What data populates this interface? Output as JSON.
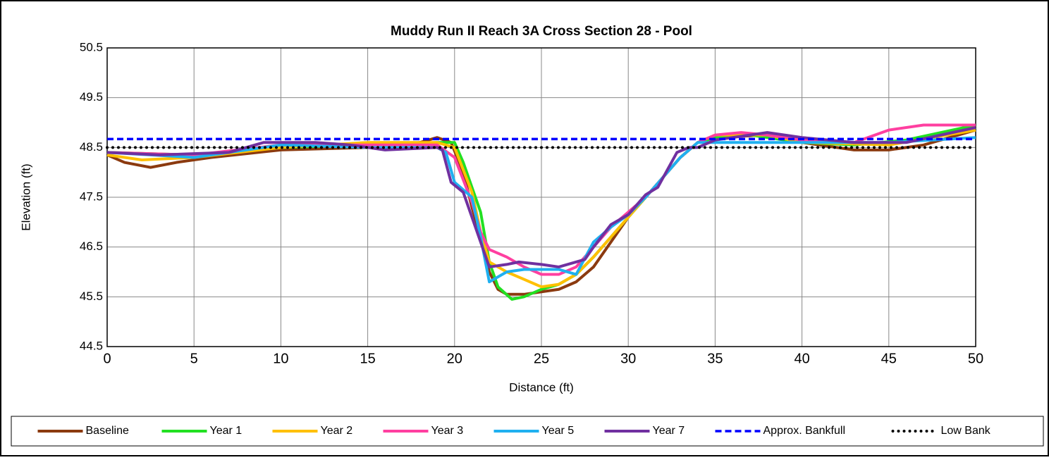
{
  "chart_data": {
    "type": "line",
    "title": "Muddy Run II Reach 3A Cross Section 28 - Pool",
    "xlabel": "Distance (ft)",
    "ylabel": "Elevation (ft)",
    "xlim": [
      0,
      50
    ],
    "xticks": [
      0,
      5,
      10,
      15,
      20,
      25,
      30,
      35,
      40,
      45,
      50
    ],
    "ylim": [
      44.5,
      50.5
    ],
    "yticks": [
      44.5,
      45.5,
      46.5,
      47.5,
      48.5,
      49.5,
      50.5
    ],
    "grid": true,
    "legend": "bottom",
    "series": [
      {
        "name": "Baseline",
        "color": "#8b3a0f",
        "style": "solid",
        "x": [
          0,
          1,
          2.5,
          4,
          6,
          10,
          15,
          18,
          19,
          19.8,
          20.5,
          21,
          21.5,
          22,
          22.5,
          23,
          24,
          25,
          26,
          27,
          28,
          29,
          30,
          31,
          32,
          33,
          34,
          35,
          38,
          40,
          43,
          45,
          47,
          50
        ],
        "values": [
          48.35,
          48.2,
          48.1,
          48.2,
          48.3,
          48.45,
          48.5,
          48.6,
          48.7,
          48.6,
          48.0,
          47.3,
          46.7,
          46.0,
          45.65,
          45.55,
          45.55,
          45.6,
          45.65,
          45.8,
          46.1,
          46.6,
          47.1,
          47.5,
          47.9,
          48.3,
          48.6,
          48.7,
          48.75,
          48.6,
          48.45,
          48.45,
          48.55,
          48.85
        ]
      },
      {
        "name": "Year 1",
        "color": "#22e022",
        "style": "solid",
        "x": [
          0,
          5,
          10,
          15,
          19,
          20,
          20.5,
          21.5,
          22,
          22.5,
          23.3,
          24,
          25,
          26,
          27,
          28,
          29,
          30,
          31,
          32,
          33,
          34,
          35,
          37,
          40,
          43,
          46,
          50
        ],
        "values": [
          48.4,
          48.35,
          48.5,
          48.55,
          48.6,
          48.6,
          48.2,
          47.2,
          46.2,
          45.7,
          45.45,
          45.5,
          45.65,
          45.75,
          45.95,
          46.3,
          46.7,
          47.1,
          47.5,
          47.9,
          48.3,
          48.6,
          48.7,
          48.75,
          48.6,
          48.55,
          48.65,
          48.95
        ]
      },
      {
        "name": "Year 2",
        "color": "#ffc000",
        "style": "solid",
        "x": [
          0,
          2,
          5,
          10,
          15,
          19,
          20,
          21,
          21.5,
          22,
          23,
          24,
          25,
          26,
          27,
          28,
          29,
          30,
          31,
          32,
          33,
          34,
          35,
          38,
          40,
          45,
          50
        ],
        "values": [
          48.35,
          48.25,
          48.3,
          48.5,
          48.6,
          48.6,
          48.5,
          47.6,
          46.8,
          46.2,
          46.0,
          45.85,
          45.7,
          45.75,
          45.95,
          46.3,
          46.7,
          47.1,
          47.5,
          47.9,
          48.3,
          48.6,
          48.75,
          48.75,
          48.6,
          48.55,
          48.85
        ]
      },
      {
        "name": "Year 3",
        "color": "#ff3fa0",
        "style": "solid",
        "x": [
          0,
          5,
          10,
          15,
          19,
          20,
          21,
          21.5,
          22,
          23,
          24,
          25,
          26,
          27,
          28,
          29,
          30,
          31,
          32,
          33,
          34,
          35,
          36.5,
          38,
          40,
          43,
          45,
          47,
          50
        ],
        "values": [
          48.4,
          48.35,
          48.55,
          48.55,
          48.55,
          48.3,
          47.4,
          46.8,
          46.45,
          46.3,
          46.1,
          45.95,
          45.95,
          46.1,
          46.5,
          46.9,
          47.2,
          47.5,
          47.9,
          48.3,
          48.6,
          48.75,
          48.8,
          48.75,
          48.65,
          48.6,
          48.85,
          48.95,
          48.95
        ]
      },
      {
        "name": "Year 5",
        "color": "#1fb0f0",
        "style": "solid",
        "x": [
          0,
          5,
          8,
          10,
          15,
          19,
          19.5,
          20,
          21,
          21.5,
          22,
          23,
          24,
          25,
          26,
          27,
          28,
          29,
          30,
          31,
          32,
          33,
          34,
          35,
          40,
          45,
          50
        ],
        "values": [
          48.4,
          48.3,
          48.45,
          48.55,
          48.5,
          48.5,
          48.4,
          47.8,
          47.5,
          46.7,
          45.8,
          46.0,
          46.05,
          46.05,
          46.05,
          45.95,
          46.6,
          46.9,
          47.15,
          47.5,
          47.9,
          48.3,
          48.6,
          48.6,
          48.6,
          48.6,
          48.7
        ]
      },
      {
        "name": "Year 7",
        "color": "#7030a0",
        "style": "solid",
        "x": [
          0,
          3,
          7,
          9,
          12,
          14,
          16,
          19,
          19.3,
          19.8,
          20.5,
          21,
          21.5,
          22,
          23,
          23.7,
          25,
          26,
          27.5,
          28,
          29,
          30,
          31,
          31.7,
          32.8,
          33.5,
          34,
          35,
          38,
          40,
          43,
          46,
          50
        ],
        "values": [
          48.4,
          48.35,
          48.4,
          48.6,
          48.6,
          48.55,
          48.45,
          48.5,
          48.45,
          47.8,
          47.6,
          47.1,
          46.6,
          46.1,
          46.15,
          46.2,
          46.15,
          46.1,
          46.25,
          46.5,
          46.95,
          47.15,
          47.55,
          47.7,
          48.4,
          48.5,
          48.5,
          48.65,
          48.8,
          48.7,
          48.6,
          48.6,
          48.9
        ]
      },
      {
        "name": "Approx. Bankfull",
        "color": "#0000ff",
        "style": "dashed",
        "x": [
          0,
          50
        ],
        "values": [
          48.67,
          48.67
        ]
      },
      {
        "name": "Low Bank",
        "color": "#000000",
        "style": "dotted",
        "x": [
          0,
          50
        ],
        "values": [
          48.5,
          48.5
        ]
      }
    ]
  }
}
